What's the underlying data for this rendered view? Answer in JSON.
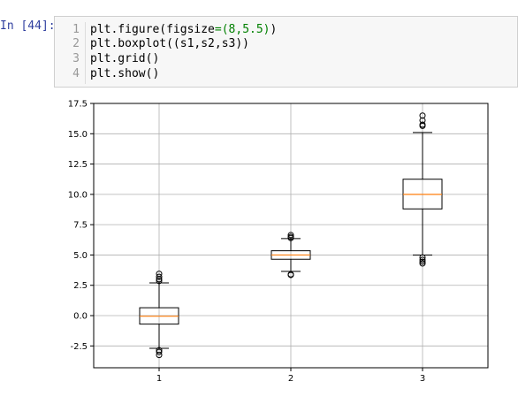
{
  "prompt": "In [44]:",
  "code": {
    "lines": [
      {
        "no": "1",
        "parts": [
          [
            "plt.figure(figsize",
            ""
          ],
          [
            "=",
            "green"
          ],
          [
            "(8,5.5)",
            "green"
          ],
          [
            ")",
            ""
          ]
        ]
      },
      {
        "no": "2",
        "parts": [
          [
            "plt.boxplot((s1,s2,s3))",
            ""
          ]
        ]
      },
      {
        "no": "3",
        "parts": [
          [
            "plt.grid()",
            ""
          ]
        ]
      },
      {
        "no": "4",
        "parts": [
          [
            "plt.show()",
            ""
          ]
        ]
      }
    ]
  },
  "chart_data": {
    "type": "box",
    "categories": [
      "1",
      "2",
      "3"
    ],
    "ylim": [
      -4.3,
      17.5
    ],
    "yticks": [
      "-2.5",
      "0.0",
      "2.5",
      "5.0",
      "7.5",
      "10.0",
      "12.5",
      "15.0",
      "17.5"
    ],
    "ytick_values": [
      -2.5,
      0.0,
      2.5,
      5.0,
      7.5,
      10.0,
      12.5,
      15.0,
      17.5
    ],
    "grid": true,
    "series": [
      {
        "q1": -0.7,
        "median": -0.05,
        "q3": 0.65,
        "whisker_low": -2.7,
        "whisker_high": 2.7,
        "fliers": [
          3.45,
          3.2,
          3.0,
          2.85,
          -2.85,
          -3.0,
          -3.25
        ]
      },
      {
        "q1": 4.65,
        "median": 5.0,
        "q3": 5.35,
        "whisker_low": 3.65,
        "whisker_high": 6.35,
        "fliers": [
          6.65,
          6.5,
          6.4,
          3.4,
          3.35
        ]
      },
      {
        "q1": 8.8,
        "median": 10.0,
        "q3": 11.25,
        "whisker_low": 5.0,
        "whisker_high": 15.1,
        "fliers": [
          16.5,
          16.1,
          15.75,
          15.65,
          4.8,
          4.6,
          4.45,
          4.3
        ]
      }
    ],
    "colors": {
      "box": "#000000",
      "median": "#ff7f0e",
      "grid": "#b0b0b0"
    }
  }
}
